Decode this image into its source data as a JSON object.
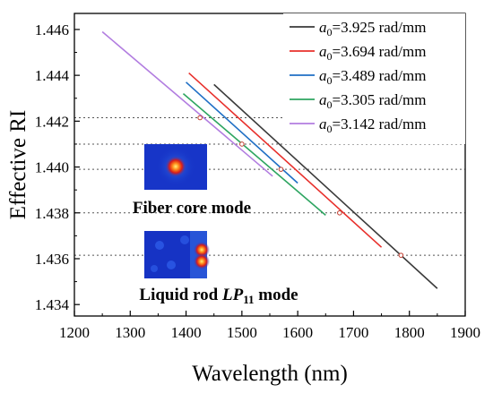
{
  "chart_data": {
    "type": "line",
    "xlabel": "Wavelength (nm)",
    "ylabel": "Effective RI",
    "xlim": [
      1200,
      1900
    ],
    "ylim": [
      1.4335,
      1.4467
    ],
    "x_ticks": [
      "1200",
      "1300",
      "1400",
      "1500",
      "1600",
      "1700",
      "1800",
      "1900"
    ],
    "x_tick_values": [
      1200,
      1300,
      1400,
      1500,
      1600,
      1700,
      1800,
      1900
    ],
    "y_ticks": [
      "1.434",
      "1.436",
      "1.438",
      "1.440",
      "1.442",
      "1.444",
      "1.446"
    ],
    "y_tick_values": [
      1.434,
      1.436,
      1.438,
      1.44,
      1.442,
      1.444,
      1.446
    ],
    "legend_position": "top-right",
    "series": [
      {
        "name": "3.925 rad/mm",
        "color": "#3a3a3a",
        "x": [
          1450,
          1850
        ],
        "y": [
          1.4436,
          1.4347
        ],
        "crossing": [
          1785,
          1.43615
        ]
      },
      {
        "name": "3.694 rad/mm",
        "color": "#e8302c",
        "x": [
          1405,
          1750
        ],
        "y": [
          1.4441,
          1.4365
        ],
        "crossing": [
          1675,
          1.438
        ]
      },
      {
        "name": "3.489 rad/mm",
        "color": "#1f6fc5",
        "x": [
          1400,
          1600
        ],
        "y": [
          1.4437,
          1.4393
        ],
        "crossing": [
          1570,
          1.4399
        ]
      },
      {
        "name": "3.305 rad/mm",
        "color": "#2ea561",
        "x": [
          1395,
          1650
        ],
        "y": [
          1.4432,
          1.4379
        ],
        "crossing": [
          1500,
          1.441
        ]
      },
      {
        "name": "3.142 rad/mm",
        "color": "#b27de0",
        "x": [
          1250,
          1555
        ],
        "y": [
          1.4459,
          1.4396
        ],
        "crossing": [
          1425,
          1.44215
        ]
      }
    ],
    "reference_lines": [
      1.44215,
      1.441,
      1.4399,
      1.438,
      1.43615
    ],
    "legend_prefix": "a",
    "legend_subscript": "0",
    "legend_equals": "=",
    "insets": [
      {
        "caption": "Fiber core mode"
      },
      {
        "caption_prefix": "Liquid rod ",
        "caption_italic": "LP",
        "caption_sub": "11",
        "caption_suffix": " mode"
      }
    ]
  }
}
